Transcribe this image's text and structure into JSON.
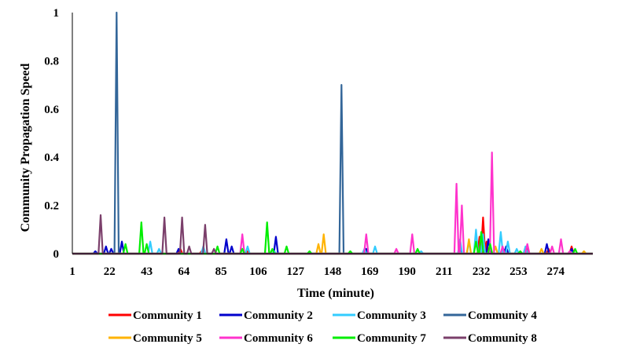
{
  "chart_data": {
    "type": "line",
    "xlabel": "Time (minute)",
    "ylabel": "Community Propagation Speed",
    "ylim": [
      0,
      1
    ],
    "xlim": [
      1,
      295
    ],
    "yticks": [
      "0",
      "0.2",
      "0.4",
      "0.6",
      "0.8",
      "1"
    ],
    "xticks": [
      "1",
      "22",
      "43",
      "64",
      "85",
      "106",
      "127",
      "148",
      "169",
      "190",
      "211",
      "232",
      "253",
      "274"
    ],
    "grid": false,
    "legend_position": "bottom",
    "series": [
      {
        "name": "Community 1",
        "color": "#ff0000",
        "points": [
          [
            62,
            0.02
          ],
          [
            74,
            0.01
          ],
          [
            100,
            0.01
          ],
          [
            231,
            0.07
          ],
          [
            233,
            0.15
          ],
          [
            235,
            0.05
          ],
          [
            237,
            0.02
          ],
          [
            258,
            0.02
          ],
          [
            270,
            0.02
          ],
          [
            283,
            0.03
          ]
        ]
      },
      {
        "name": "Community 2",
        "color": "#0000cc",
        "points": [
          [
            14,
            0.01
          ],
          [
            20,
            0.03
          ],
          [
            23,
            0.02
          ],
          [
            29,
            0.05
          ],
          [
            61,
            0.02
          ],
          [
            88,
            0.06
          ],
          [
            91,
            0.03
          ],
          [
            116,
            0.07
          ],
          [
            167,
            0.02
          ],
          [
            220,
            0.03
          ],
          [
            236,
            0.06
          ],
          [
            246,
            0.03
          ],
          [
            269,
            0.04
          ],
          [
            283,
            0.02
          ]
        ]
      },
      {
        "name": "Community 3",
        "color": "#33ccff",
        "points": [
          [
            45,
            0.05
          ],
          [
            50,
            0.02
          ],
          [
            75,
            0.03
          ],
          [
            100,
            0.03
          ],
          [
            115,
            0.01
          ],
          [
            166,
            0.02
          ],
          [
            172,
            0.03
          ],
          [
            198,
            0.01
          ],
          [
            220,
            0.06
          ],
          [
            225,
            0.05
          ],
          [
            229,
            0.1
          ],
          [
            233,
            0.08
          ],
          [
            243,
            0.09
          ],
          [
            247,
            0.05
          ],
          [
            252,
            0.02
          ],
          [
            257,
            0.03
          ]
        ]
      },
      {
        "name": "Community 4",
        "color": "#336699",
        "points": [
          [
            26,
            1.0
          ],
          [
            153,
            0.7
          ]
        ]
      },
      {
        "name": "Community 5",
        "color": "#ffb300",
        "points": [
          [
            140,
            0.04
          ],
          [
            143,
            0.08
          ],
          [
            225,
            0.06
          ],
          [
            240,
            0.03
          ],
          [
            266,
            0.02
          ],
          [
            290,
            0.01
          ]
        ]
      },
      {
        "name": "Community 6",
        "color": "#ff33cc",
        "points": [
          [
            97,
            0.08
          ],
          [
            167,
            0.08
          ],
          [
            184,
            0.02
          ],
          [
            193,
            0.08
          ],
          [
            218,
            0.29
          ],
          [
            221,
            0.2
          ],
          [
            238,
            0.42
          ],
          [
            244,
            0.03
          ],
          [
            258,
            0.04
          ],
          [
            272,
            0.03
          ],
          [
            277,
            0.06
          ],
          [
            282,
            0.01
          ]
        ]
      },
      {
        "name": "Community 7",
        "color": "#00ee00",
        "points": [
          [
            31,
            0.04
          ],
          [
            40,
            0.13
          ],
          [
            43,
            0.04
          ],
          [
            83,
            0.03
          ],
          [
            97,
            0.02
          ],
          [
            111,
            0.13
          ],
          [
            114,
            0.02
          ],
          [
            122,
            0.03
          ],
          [
            135,
            0.01
          ],
          [
            158,
            0.01
          ],
          [
            196,
            0.02
          ],
          [
            229,
            0.05
          ],
          [
            232,
            0.09
          ],
          [
            237,
            0.04
          ],
          [
            254,
            0.01
          ],
          [
            285,
            0.02
          ]
        ]
      },
      {
        "name": "Community 8",
        "color": "#7b3f6b",
        "points": [
          [
            17,
            0.16
          ],
          [
            53,
            0.15
          ],
          [
            63,
            0.15
          ],
          [
            67,
            0.03
          ],
          [
            76,
            0.12
          ],
          [
            81,
            0.02
          ]
        ]
      }
    ]
  }
}
